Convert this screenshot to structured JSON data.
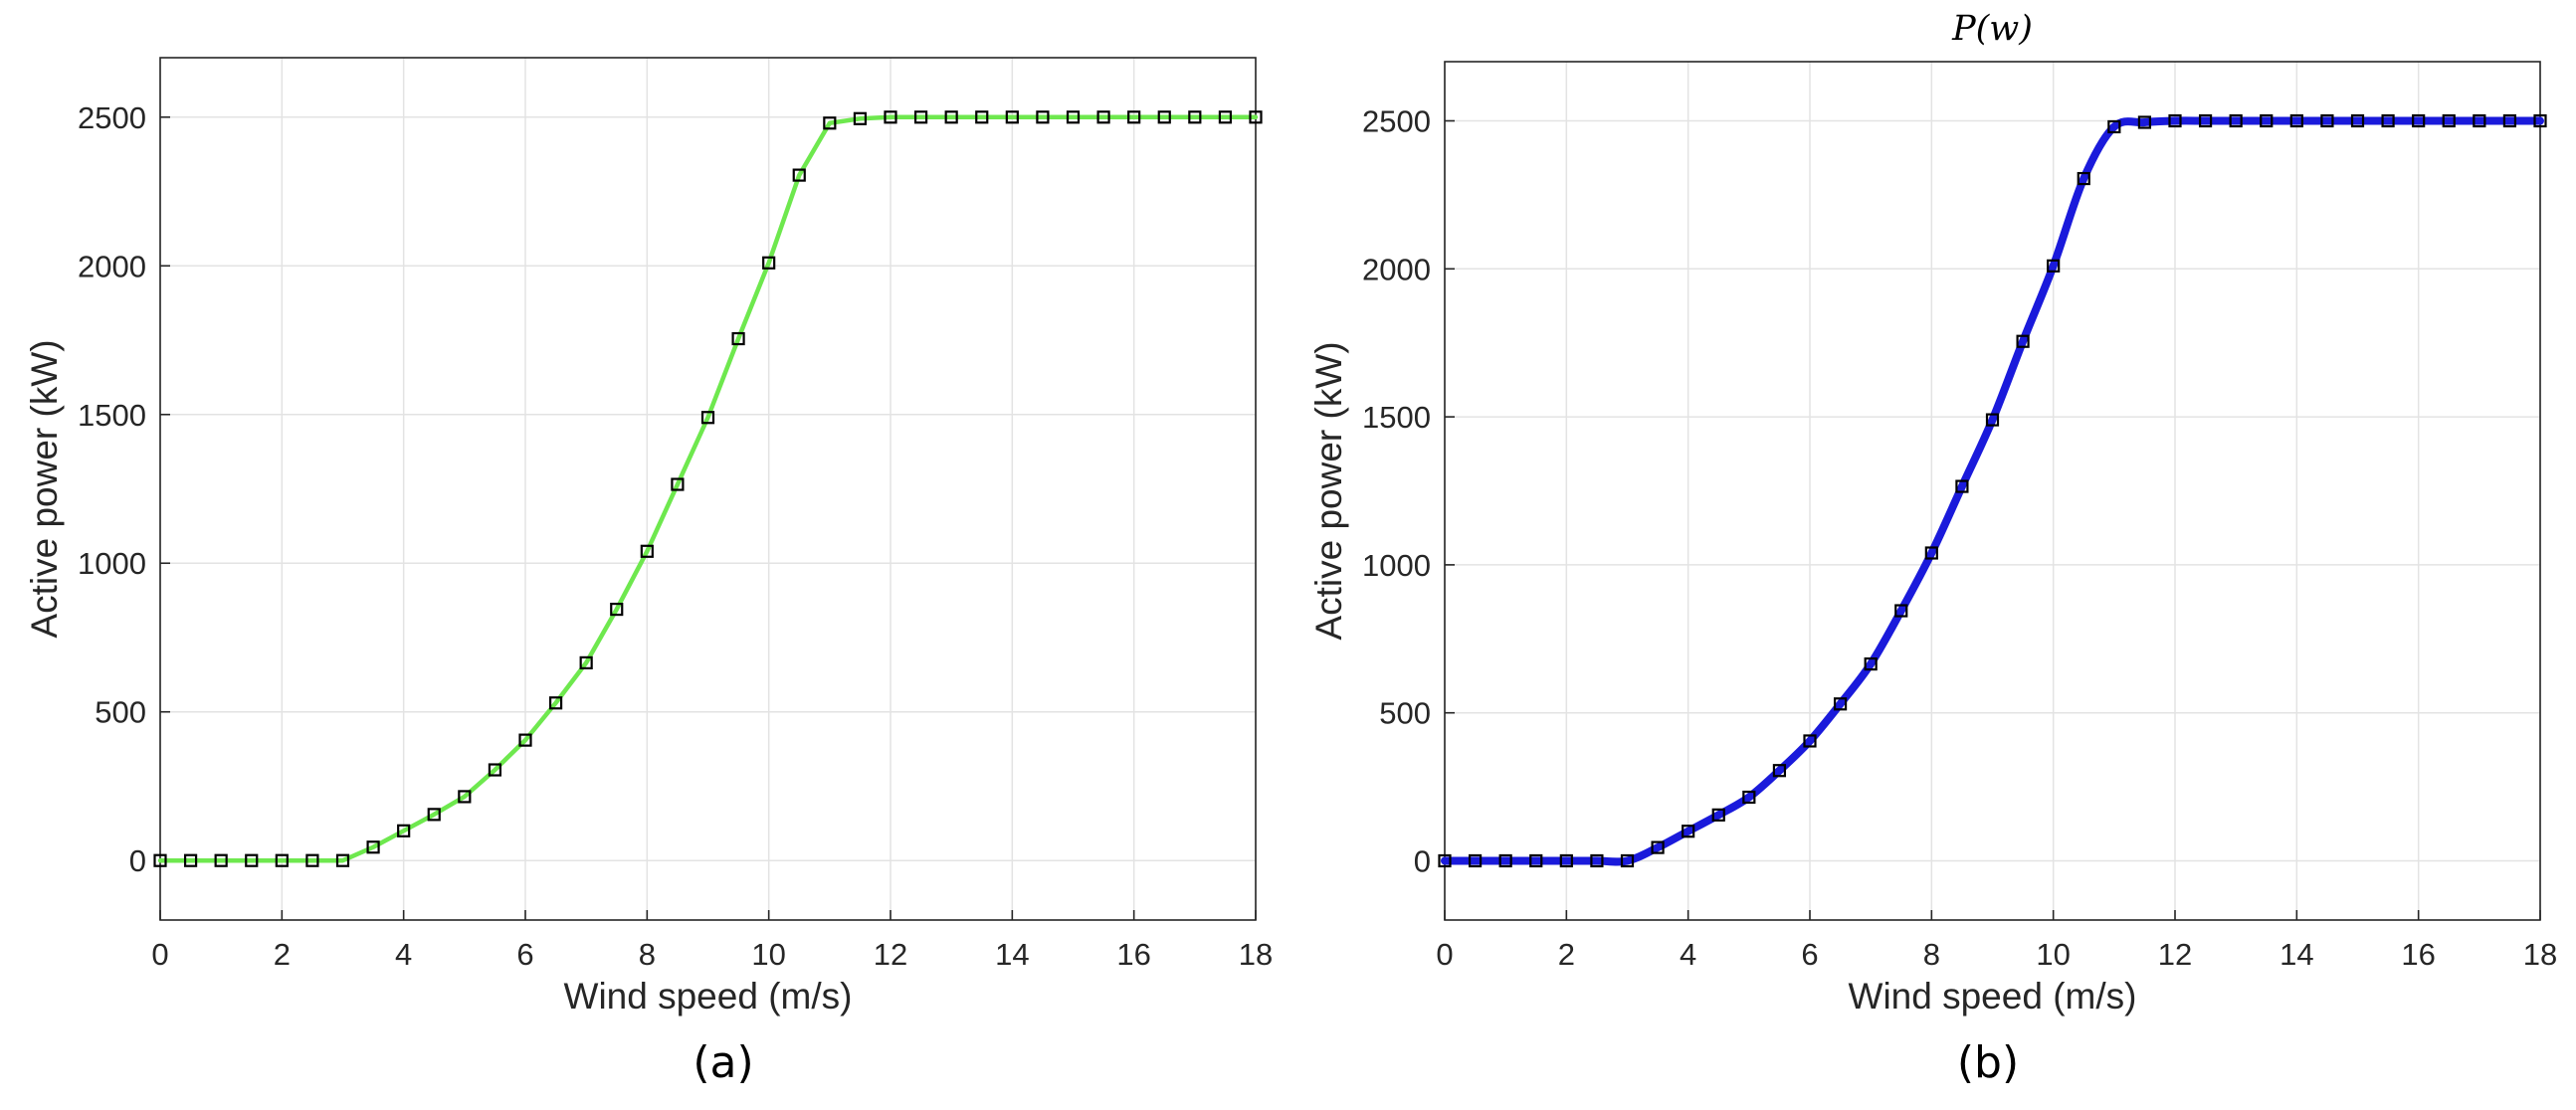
{
  "figure": {
    "panels": [
      {
        "id": "a",
        "title": "",
        "caption": "(a)",
        "xlabel": "Wind speed (m/s)",
        "ylabel": "Active power (kW)"
      },
      {
        "id": "b",
        "title": "P(w)",
        "caption": "(b)",
        "xlabel": "Wind speed (m/s)",
        "ylabel": "Active power (kW)"
      }
    ]
  },
  "chart_data": [
    {
      "type": "line",
      "title": "",
      "xlabel": "Wind speed (m/s)",
      "ylabel": "Active power (kW)",
      "xlim": [
        0,
        18
      ],
      "ylim": [
        -200,
        2700
      ],
      "xticks": [
        0,
        2,
        4,
        6,
        8,
        10,
        12,
        14,
        16,
        18
      ],
      "yticks": [
        0,
        500,
        1000,
        1500,
        2000,
        2500
      ],
      "grid": true,
      "line_color": "#6EE84E",
      "marker": "square",
      "marker_color": "#000000",
      "x": [
        0,
        0.5,
        1,
        1.5,
        2,
        2.5,
        3,
        3.5,
        4,
        4.5,
        5,
        5.5,
        6,
        6.5,
        7,
        7.5,
        8,
        8.5,
        9,
        9.5,
        10,
        10.5,
        11,
        11.5,
        12,
        12.5,
        13,
        13.5,
        14,
        14.5,
        15,
        15.5,
        16,
        16.5,
        17,
        17.5,
        18
      ],
      "y": [
        0,
        0,
        0,
        0,
        0,
        0,
        0,
        45,
        100,
        155,
        215,
        305,
        405,
        530,
        665,
        845,
        1040,
        1265,
        1490,
        1755,
        2010,
        2305,
        2480,
        2495,
        2500,
        2500,
        2500,
        2500,
        2500,
        2500,
        2500,
        2500,
        2500,
        2500,
        2500,
        2500,
        2500
      ]
    },
    {
      "type": "line",
      "title": "P(w)",
      "xlabel": "Wind speed (m/s)",
      "ylabel": "Active power (kW)",
      "xlim": [
        0,
        18
      ],
      "ylim": [
        -200,
        2700
      ],
      "xticks": [
        0,
        2,
        4,
        6,
        8,
        10,
        12,
        14,
        16,
        18
      ],
      "yticks": [
        0,
        500,
        1000,
        1500,
        2000,
        2500
      ],
      "grid": true,
      "line_color": "#1A1ADB",
      "marker": "square",
      "marker_color": "#000000",
      "x": [
        0,
        0.5,
        1,
        1.5,
        2,
        2.5,
        3,
        3.5,
        4,
        4.5,
        5,
        5.5,
        6,
        6.5,
        7,
        7.5,
        8,
        8.5,
        9,
        9.5,
        10,
        10.5,
        11,
        11.5,
        12,
        12.5,
        13,
        13.5,
        14,
        14.5,
        15,
        15.5,
        16,
        16.5,
        17,
        17.5,
        18
      ],
      "y": [
        0,
        0,
        0,
        0,
        0,
        0,
        0,
        45,
        100,
        155,
        215,
        305,
        405,
        530,
        665,
        845,
        1040,
        1265,
        1490,
        1755,
        2010,
        2305,
        2480,
        2495,
        2500,
        2500,
        2500,
        2500,
        2500,
        2500,
        2500,
        2500,
        2500,
        2500,
        2500,
        2500,
        2500
      ]
    }
  ]
}
